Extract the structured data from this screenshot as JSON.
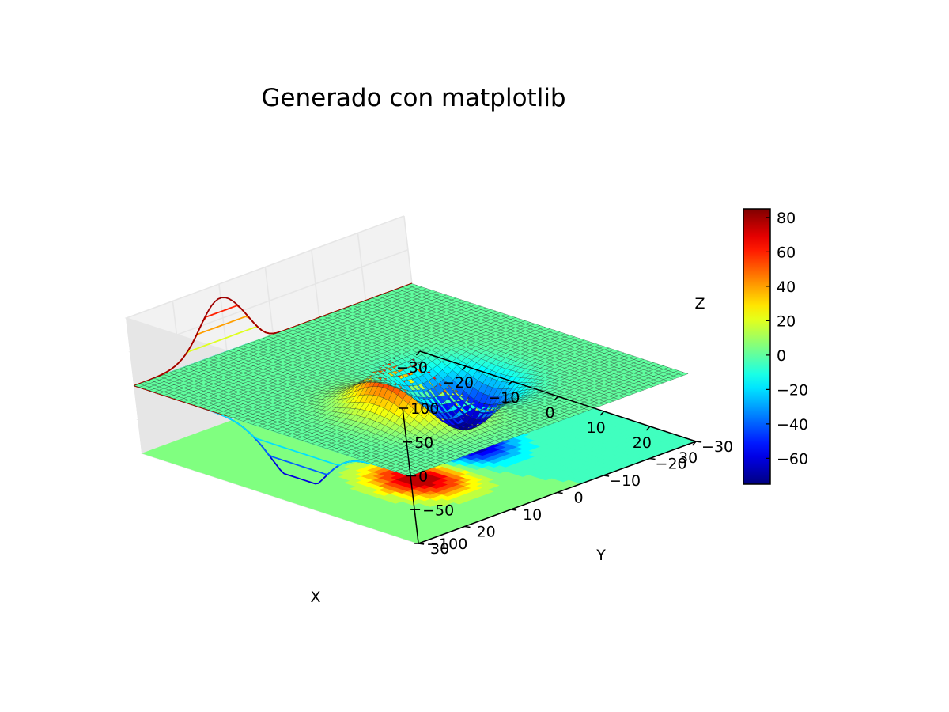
{
  "chart_data": {
    "type": "surface3d",
    "title": "Generado con matplotlib",
    "xlabel": "X",
    "ylabel": "Y",
    "zlabel": "Z",
    "xlim": [
      -30,
      30
    ],
    "ylim": [
      -30,
      30
    ],
    "zlim": [
      -100,
      100
    ],
    "x_ticks": [
      "−30",
      "−20",
      "−10",
      "0",
      "10",
      "20",
      "30"
    ],
    "y_ticks": [
      "−30",
      "−20",
      "−10",
      "0",
      "10",
      "20",
      "30"
    ],
    "z_ticks": [
      "−100",
      "−50",
      "0",
      "50",
      "100"
    ],
    "grid": true,
    "colormap": "jet",
    "colorbar": {
      "range": [
        -75,
        85
      ],
      "ticks": [
        "−60",
        "−40",
        "−20",
        "0",
        "20",
        "40",
        "60",
        "80"
      ]
    },
    "surface_extrema": {
      "max": {
        "x": 10,
        "y": 10,
        "z": 80
      },
      "min": {
        "x": 5,
        "y": -5,
        "z": -75
      }
    },
    "projections": [
      {
        "type": "contourf",
        "plane": "z",
        "offset": -100
      },
      {
        "type": "contour",
        "plane": "x",
        "offset": -30
      },
      {
        "type": "contour",
        "plane": "y",
        "offset": 30
      }
    ]
  }
}
